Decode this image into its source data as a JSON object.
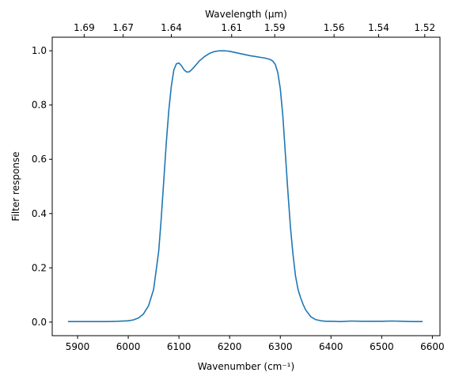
{
  "chart_data": {
    "type": "line",
    "title": "",
    "xlabel": "Wavenumber (cm⁻¹)",
    "ylabel": "Filter response",
    "top_xlabel": "Wavelength (μm)",
    "xlim": [
      5850,
      6615
    ],
    "ylim": [
      -0.05,
      1.05
    ],
    "grid": false,
    "x_ticks": [
      5900,
      6000,
      6100,
      6200,
      6300,
      6400,
      6500,
      6600
    ],
    "y_ticks": [
      {
        "value": 0.0,
        "label": "0.0"
      },
      {
        "value": 0.2,
        "label": "0.2"
      },
      {
        "value": 0.4,
        "label": "0.4"
      },
      {
        "value": 0.6,
        "label": "0.6"
      },
      {
        "value": 0.8,
        "label": "0.8"
      },
      {
        "value": 1.0,
        "label": "1.0"
      }
    ],
    "top_ticks": [
      {
        "wavenumber": 5913,
        "label": "1.69"
      },
      {
        "wavenumber": 5990,
        "label": "1.67"
      },
      {
        "wavenumber": 6085,
        "label": "1.64"
      },
      {
        "wavenumber": 6204,
        "label": "1.61"
      },
      {
        "wavenumber": 6289,
        "label": "1.59"
      },
      {
        "wavenumber": 6406,
        "label": "1.56"
      },
      {
        "wavenumber": 6494,
        "label": "1.54"
      },
      {
        "wavenumber": 6585,
        "label": "1.52"
      }
    ],
    "line_color": "#1f77b4",
    "series": [
      {
        "x": [
          5882,
          5900,
          5920,
          5940,
          5960,
          5980,
          6000,
          6010,
          6020,
          6030,
          6040,
          6050,
          6060,
          6065,
          6070,
          6075,
          6080,
          6085,
          6090,
          6095,
          6100,
          6105,
          6110,
          6115,
          6120,
          6125,
          6130,
          6140,
          6150,
          6160,
          6170,
          6180,
          6190,
          6200,
          6210,
          6220,
          6230,
          6240,
          6250,
          6260,
          6270,
          6280,
          6285,
          6290,
          6295,
          6300,
          6305,
          6310,
          6315,
          6320,
          6325,
          6330,
          6335,
          6340,
          6345,
          6350,
          6360,
          6370,
          6380,
          6390,
          6400,
          6420,
          6440,
          6460,
          6480,
          6500,
          6520,
          6540,
          6560,
          6580
        ],
        "y": [
          0.002,
          0.002,
          0.002,
          0.002,
          0.002,
          0.003,
          0.005,
          0.008,
          0.015,
          0.03,
          0.06,
          0.12,
          0.26,
          0.38,
          0.52,
          0.66,
          0.78,
          0.87,
          0.93,
          0.952,
          0.955,
          0.945,
          0.93,
          0.922,
          0.922,
          0.93,
          0.94,
          0.962,
          0.978,
          0.99,
          0.997,
          1.0,
          1.0,
          0.998,
          0.994,
          0.99,
          0.986,
          0.982,
          0.979,
          0.976,
          0.973,
          0.968,
          0.962,
          0.95,
          0.92,
          0.86,
          0.76,
          0.62,
          0.48,
          0.35,
          0.25,
          0.17,
          0.12,
          0.09,
          0.065,
          0.045,
          0.02,
          0.009,
          0.005,
          0.003,
          0.003,
          0.002,
          0.004,
          0.003,
          0.003,
          0.003,
          0.004,
          0.003,
          0.002,
          0.002
        ]
      }
    ]
  }
}
